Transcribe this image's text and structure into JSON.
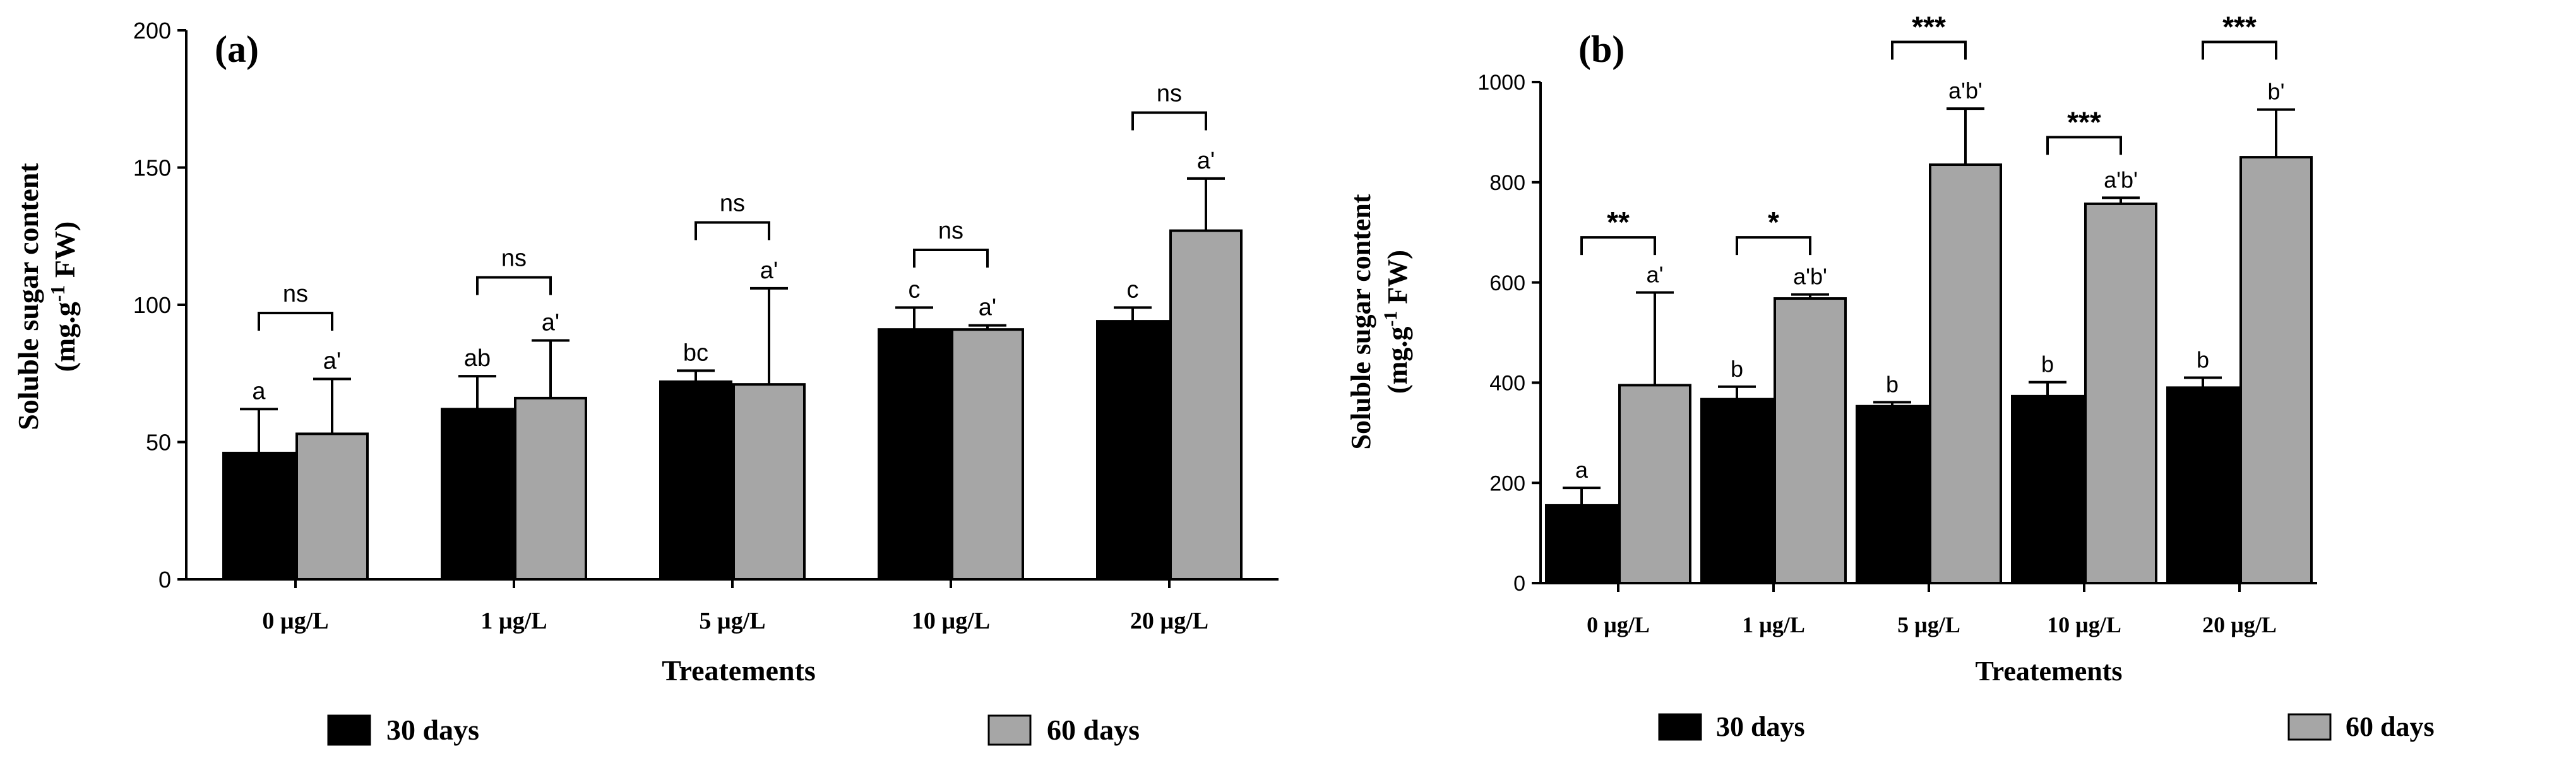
{
  "chart_data": [
    {
      "type": "bar",
      "panel_label": "(a)",
      "title": "",
      "xlabel": "Treatements",
      "ylabel_main": "Soluble sugar content",
      "ylabel_unit_pre": "(mg.g",
      "ylabel_unit_sup": "-1",
      "ylabel_unit_post": " FW)",
      "ylim": [
        0,
        200
      ],
      "yticks": [
        0,
        50,
        100,
        150,
        200
      ],
      "categories": [
        "0 µg/L",
        "1 µg/L",
        "5 µg/L",
        "10 µg/L",
        "20 µg/L"
      ],
      "series": [
        {
          "name": "30 days",
          "color": "#000000",
          "values": [
            46,
            62,
            72,
            91,
            94
          ],
          "errors": [
            16,
            12,
            4,
            8,
            5
          ],
          "letters": [
            "a",
            "ab",
            "bc",
            "c",
            "c"
          ]
        },
        {
          "name": "60 days",
          "color": "#a6a6a6",
          "values": [
            53,
            66,
            71,
            91,
            127
          ],
          "errors": [
            20,
            21,
            35,
            1.5,
            19
          ],
          "letters": [
            "a'",
            "a'",
            "a'",
            "a'",
            "a'"
          ]
        }
      ],
      "comparisons": [
        "ns",
        "ns",
        "ns",
        "ns",
        "ns"
      ],
      "comparison_heights": [
        97,
        110,
        130,
        120,
        170
      ],
      "legend": [
        "30 days",
        "60 days"
      ],
      "legend_position": "bottom"
    },
    {
      "type": "bar",
      "panel_label": "(b)",
      "title": "",
      "xlabel": "Treatements",
      "ylabel_main": "Soluble sugar content",
      "ylabel_unit_pre": "(mg.g",
      "ylabel_unit_sup": "-1",
      "ylabel_unit_post": " FW)",
      "ylim": [
        0,
        1000
      ],
      "yticks": [
        0,
        200,
        400,
        600,
        800,
        1000
      ],
      "categories": [
        "0 µg/L",
        "1 µg/L",
        "5 µg/L",
        "10 µg/L",
        "20 µg/L"
      ],
      "series": [
        {
          "name": "30 days",
          "color": "#000000",
          "values": [
            155,
            367,
            353,
            373,
            390
          ],
          "errors": [
            35,
            25,
            8,
            28,
            20
          ],
          "letters": [
            "a",
            "b",
            "b",
            "b",
            "b"
          ]
        },
        {
          "name": "60 days",
          "color": "#a6a6a6",
          "values": [
            395,
            568,
            835,
            757,
            850
          ],
          "errors": [
            185,
            8,
            112,
            12,
            95
          ],
          "letters": [
            "a'",
            "a'b'",
            "a'b'",
            "a'b'",
            "b'"
          ]
        }
      ],
      "comparisons": [
        "**",
        "*",
        "***",
        "***",
        "***"
      ],
      "comparison_heights": [
        690,
        690,
        1080,
        890,
        1080
      ],
      "legend": [
        "30 days",
        "60 days"
      ],
      "legend_position": "bottom"
    }
  ]
}
